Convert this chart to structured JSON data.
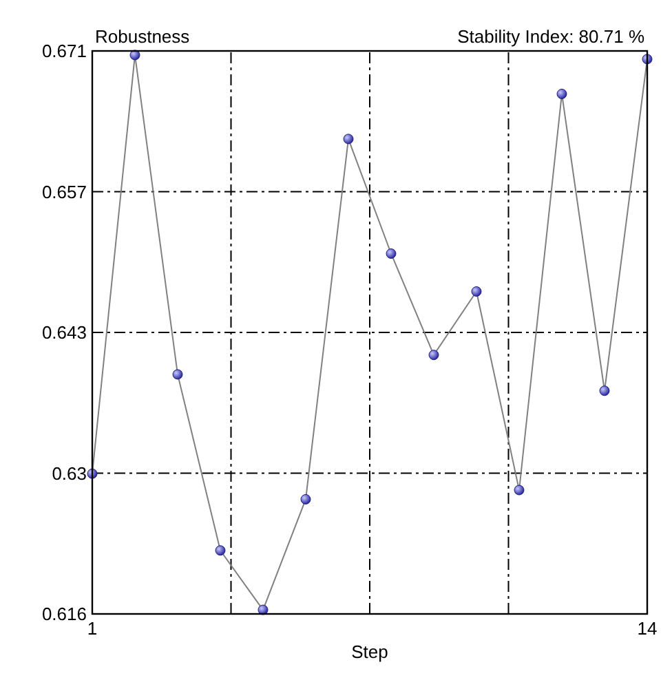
{
  "chart_data": {
    "type": "line",
    "title": "Robustness",
    "subtitle": "Stability Index: 80.71 %",
    "xlabel": "Step",
    "x": [
      1,
      2,
      3,
      4,
      5,
      6,
      7,
      8,
      9,
      10,
      11,
      12,
      13,
      14
    ],
    "series": [
      {
        "color": "#808080",
        "values": [
          0.6297,
          0.6706,
          0.6394,
          0.6222,
          0.6164,
          0.6272,
          0.6624,
          0.6512,
          0.6413,
          0.6475,
          0.6281,
          0.6668,
          0.6378,
          0.6702
        ]
      }
    ],
    "xlim": [
      1,
      14
    ],
    "ylim": [
      0.616,
      0.671
    ],
    "xticks": [
      1,
      {
        "value": 4.25,
        "label": null
      },
      {
        "value": 7.5,
        "label": null
      },
      {
        "value": 10.75,
        "label": null
      },
      14
    ],
    "yticks": [
      0.616,
      {
        "value": 0.62975,
        "label": "0.63"
      },
      {
        "value": 0.6435,
        "label": "0.643"
      },
      {
        "value": 0.65725,
        "label": "0.657"
      },
      0.671
    ],
    "grid": true,
    "marker": "circle",
    "line_style": "solid"
  }
}
